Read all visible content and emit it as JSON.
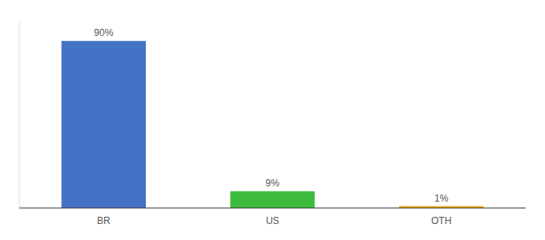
{
  "chart_data": {
    "type": "bar",
    "categories": [
      "BR",
      "US",
      "OTH"
    ],
    "values": [
      90,
      9,
      1
    ],
    "value_labels": [
      "90%",
      "9%",
      "1%"
    ],
    "colors": [
      "#4472c4",
      "#3dbb3d",
      "#f0a500"
    ],
    "ylim": [
      0,
      100
    ],
    "data_labels": true,
    "tick_labels": "x"
  }
}
